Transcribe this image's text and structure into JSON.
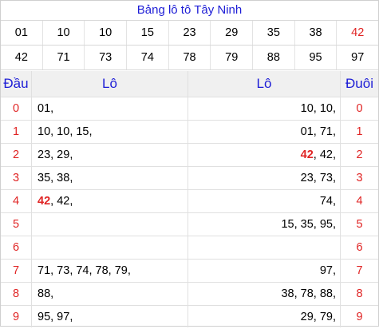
{
  "title": "Bảng lô tô Tây Ninh",
  "numbers_row1": [
    "01",
    "10",
    "10",
    "15",
    "23",
    "29",
    "35",
    "38",
    "42"
  ],
  "numbers_row2": [
    "42",
    "71",
    "73",
    "74",
    "78",
    "79",
    "88",
    "95",
    "97"
  ],
  "highlight_color": "#e02424",
  "header_color": "#1d1dd6",
  "headers": {
    "dau": "Đầu",
    "lo_left": "Lô",
    "lo_right": "Lô",
    "duoi": "Đuôi"
  },
  "rows": [
    {
      "dau": "0",
      "lo_left_hl": "",
      "lo_left": "01,",
      "lo_right_hl": "",
      "lo_right": "10, 10,",
      "duoi": "0"
    },
    {
      "dau": "1",
      "lo_left_hl": "",
      "lo_left": "10, 10, 15,",
      "lo_right_hl": "",
      "lo_right": "01, 71,",
      "duoi": "1"
    },
    {
      "dau": "2",
      "lo_left_hl": "",
      "lo_left": "23, 29,",
      "lo_right_hl": "42",
      "lo_right": ", 42,",
      "duoi": "2"
    },
    {
      "dau": "3",
      "lo_left_hl": "",
      "lo_left": "35, 38,",
      "lo_right_hl": "",
      "lo_right": "23, 73,",
      "duoi": "3"
    },
    {
      "dau": "4",
      "lo_left_hl": "42",
      "lo_left": ", 42,",
      "lo_right_hl": "",
      "lo_right": "74,",
      "duoi": "4"
    },
    {
      "dau": "5",
      "lo_left_hl": "",
      "lo_left": "",
      "lo_right_hl": "",
      "lo_right": "15, 35, 95,",
      "duoi": "5"
    },
    {
      "dau": "6",
      "lo_left_hl": "",
      "lo_left": "",
      "lo_right_hl": "",
      "lo_right": "",
      "duoi": "6"
    },
    {
      "dau": "7",
      "lo_left_hl": "",
      "lo_left": "71, 73, 74, 78, 79,",
      "lo_right_hl": "",
      "lo_right": "97,",
      "duoi": "7"
    },
    {
      "dau": "8",
      "lo_left_hl": "",
      "lo_left": "88,",
      "lo_right_hl": "",
      "lo_right": "38, 78, 88,",
      "duoi": "8"
    },
    {
      "dau": "9",
      "lo_left_hl": "",
      "lo_left": "95, 97,",
      "lo_right_hl": "",
      "lo_right": "29, 79,",
      "duoi": "9"
    }
  ]
}
